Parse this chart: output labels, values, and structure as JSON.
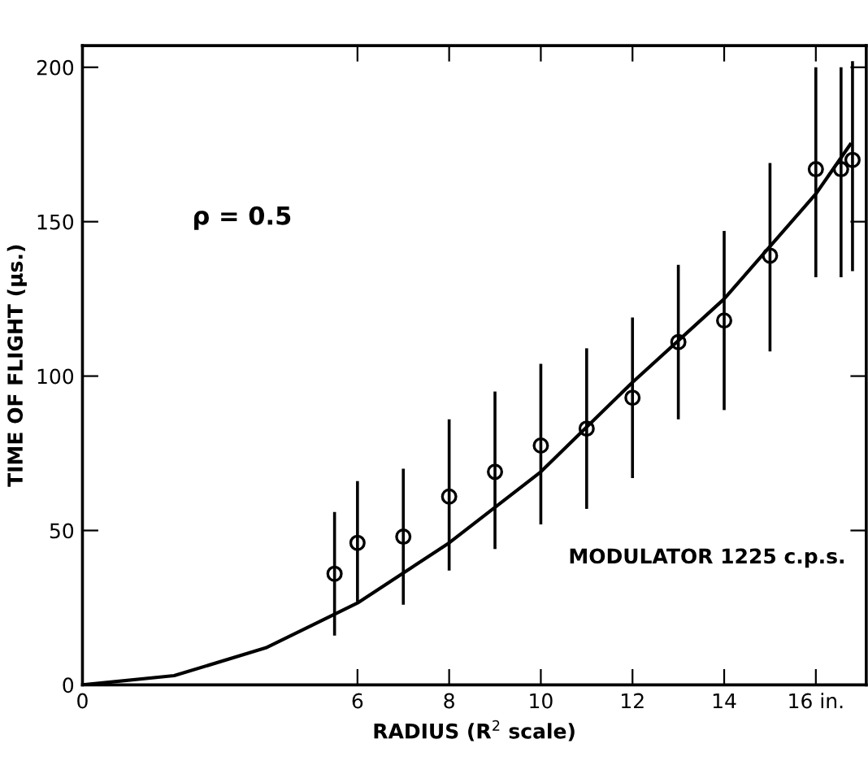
{
  "chart_data": {
    "type": "scatter",
    "xlabel": "RADIUS (R$^{2}$ scale)",
    "ylabel": "TIME OF FLIGHT (μs.)",
    "annotations": [
      "ρ = 0.5",
      "MODULATOR 1225 c.p.s."
    ],
    "xlim": [
      0,
      17.1
    ],
    "ylim": [
      0,
      207
    ],
    "xticks": [
      0,
      6,
      8,
      10,
      12,
      14,
      {
        "value": 16,
        "label": "16 in."
      }
    ],
    "yticks": [
      0,
      50,
      100,
      150,
      200
    ],
    "grid": false,
    "series": [
      {
        "color": "#000000",
        "marker": "circle",
        "x": [
          5.5,
          6,
          7,
          8,
          9,
          10,
          11,
          12,
          13,
          14,
          15,
          16,
          16.55,
          16.8
        ],
        "values": [
          36,
          46,
          48,
          61,
          69,
          77.5,
          83,
          93,
          111,
          118,
          139,
          167,
          167,
          170
        ],
        "errors": [
          [
            16,
            56
          ],
          [
            27,
            66
          ],
          [
            26,
            70
          ],
          [
            37,
            86
          ],
          [
            44,
            95
          ],
          [
            52,
            104
          ],
          [
            57,
            109
          ],
          [
            67,
            119
          ],
          [
            86,
            136
          ],
          [
            89,
            147
          ],
          [
            108,
            169
          ],
          [
            132,
            200
          ],
          [
            132,
            200
          ],
          [
            134,
            202
          ]
        ]
      },
      {
        "type": "line",
        "color": "#000000",
        "marker": "none",
        "x": [
          0,
          2,
          4,
          6,
          8,
          10,
          12,
          14,
          16,
          16.75
        ],
        "values": [
          0,
          3,
          12,
          26.5,
          46,
          69,
          98,
          125,
          159,
          175
        ],
        "line_style": "solid"
      }
    ]
  }
}
